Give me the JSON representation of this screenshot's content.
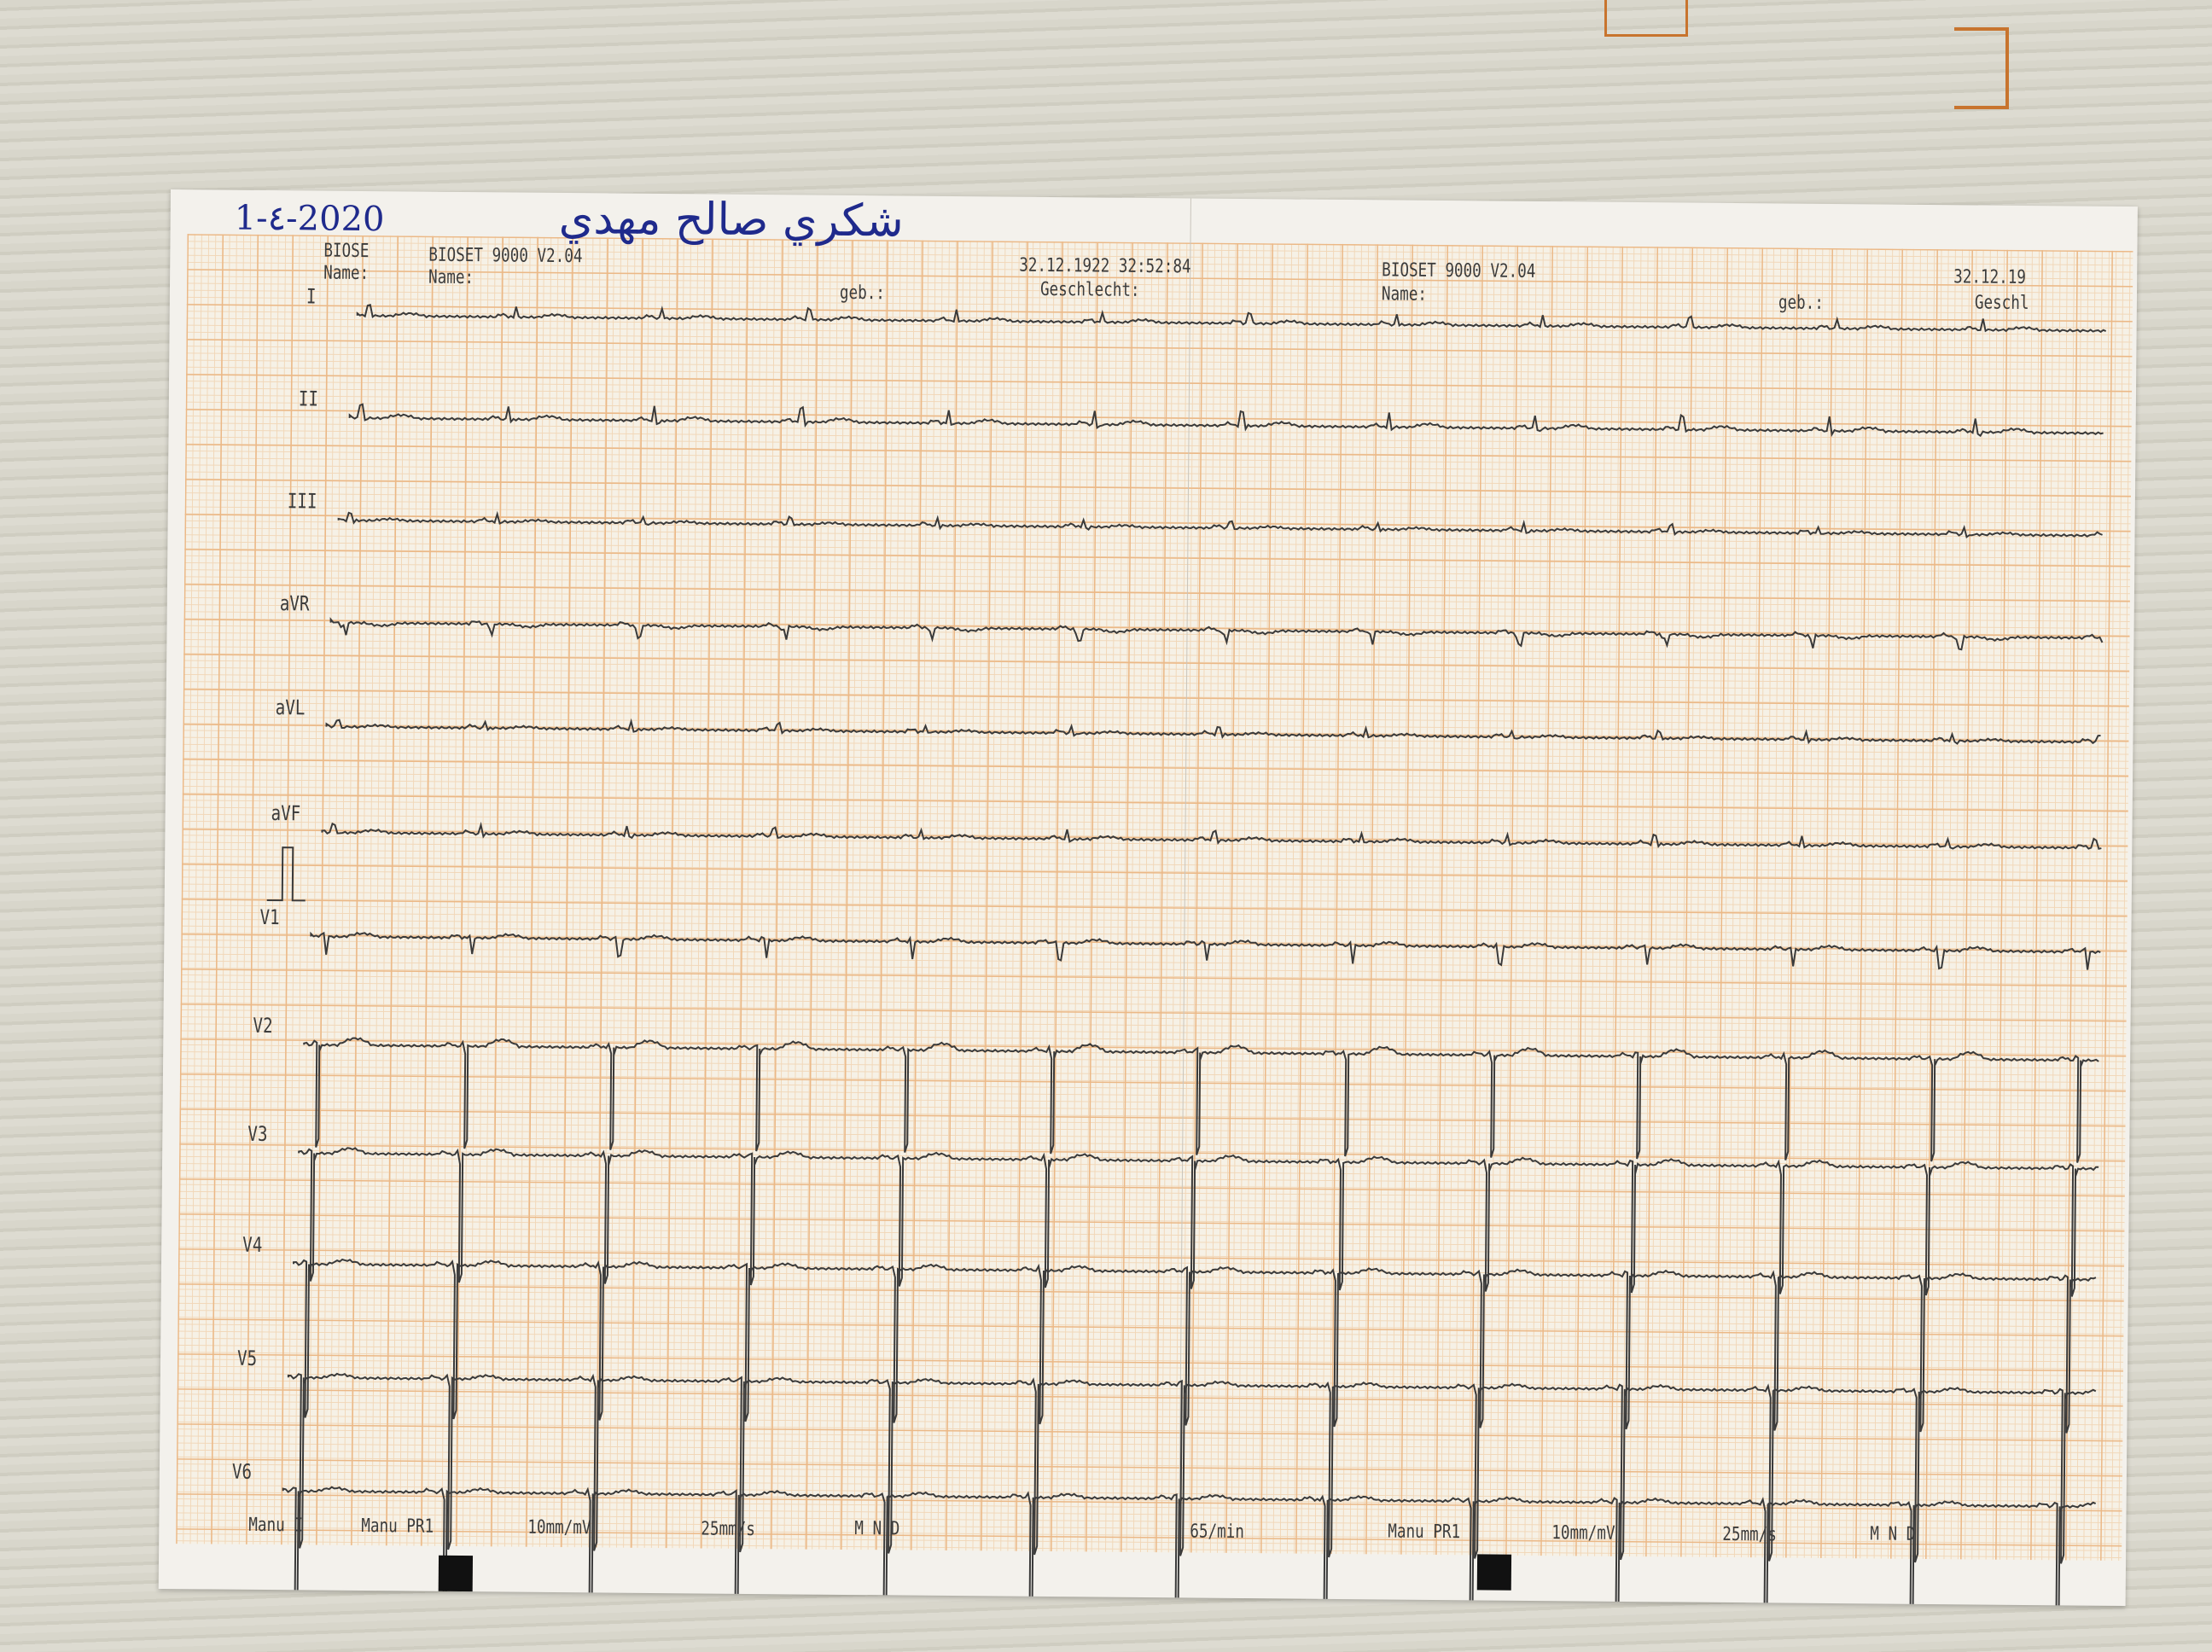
{
  "handwriting": {
    "date": "1-٤-2020",
    "name": "شكري صالح مهدي"
  },
  "header_left": {
    "col1_device": "BIOSE",
    "col1_name": "Name:",
    "device": "BIOSET 9000 V2.04",
    "name_label": "Name:",
    "geb_label": "geb.:",
    "datetime": "32.12.1922 32:52:84",
    "sex_label": "Geschlecht:"
  },
  "header_right": {
    "device": "BIOSET 9000 V2.04",
    "name_label": "Name:",
    "geb_label": "geb.:",
    "date": "32.12.19",
    "sex_label": "Geschl"
  },
  "leads": [
    "I",
    "II",
    "III",
    "aVR",
    "aVL",
    "aVF",
    "V1",
    "V2",
    "V3",
    "V4",
    "V5",
    "V6"
  ],
  "footer": {
    "mode_left": "Manu I",
    "mode_pr1": "Manu PR1",
    "gain": "10mm/mV",
    "speed": "25mm/s",
    "filters": "M  N  D",
    "heart_rate": "65/min",
    "mode_pr1_right": "Manu PR1",
    "gain_right": "10mm/mV",
    "speed_right": "25mm/s",
    "filters_right": "M  N  D"
  },
  "colors": {
    "grid_major": "#ebb886",
    "grid_minor": "#f1d7b8",
    "trace": "#3a3a3a",
    "ink": "#1f2a8c"
  }
}
